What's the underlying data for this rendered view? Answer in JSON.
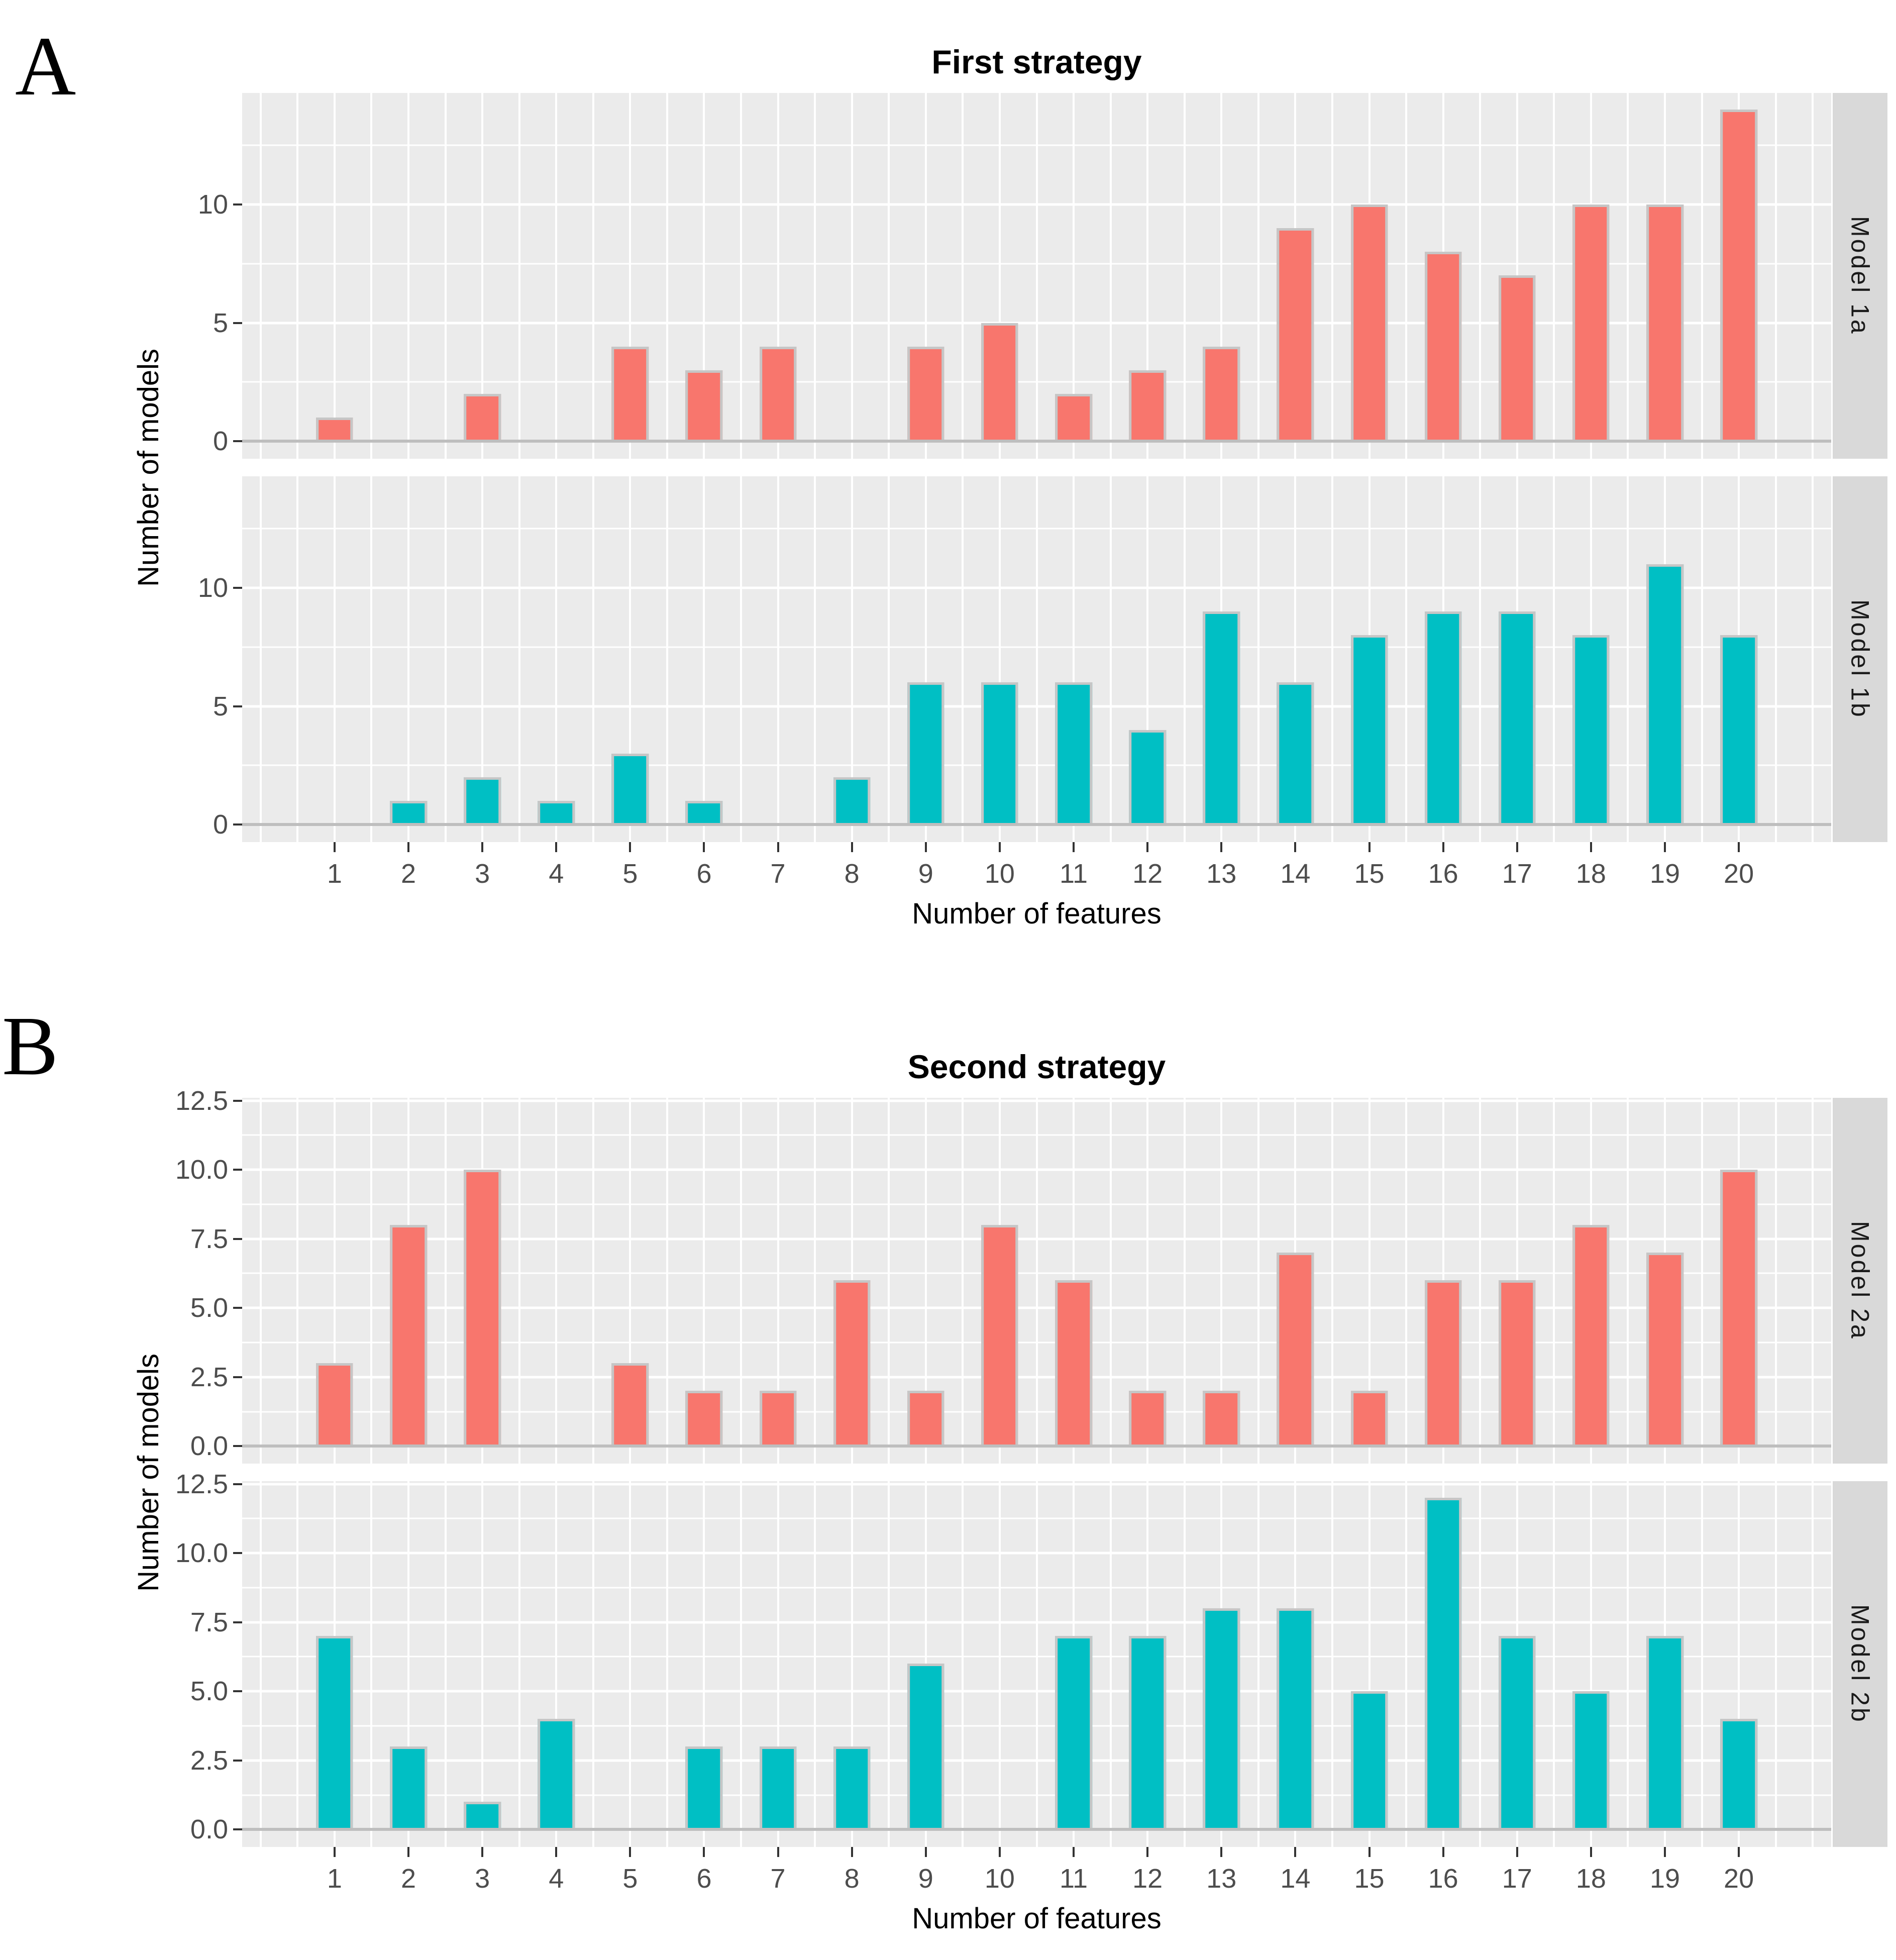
{
  "figure": {
    "sections": [
      {
        "corner_label": "A"
      },
      {
        "corner_label": "B"
      }
    ]
  },
  "chart_data": [
    {
      "type": "bar",
      "title": "First strategy",
      "xlabel": "Number of features",
      "ylabel": "Number of models",
      "categories": [
        "1",
        "2",
        "3",
        "4",
        "5",
        "6",
        "7",
        "8",
        "9",
        "10",
        "11",
        "12",
        "13",
        "14",
        "15",
        "16",
        "17",
        "18",
        "19",
        "20"
      ],
      "facets": [
        {
          "label": "Model 1a",
          "color": "#F8766D",
          "values": [
            1,
            0,
            2,
            0,
            4,
            3,
            4,
            0,
            4,
            5,
            2,
            3,
            4,
            9,
            10,
            8,
            7,
            10,
            10,
            14
          ]
        },
        {
          "label": "Model 1b",
          "color": "#00BFC4",
          "values": [
            0,
            1,
            2,
            1,
            3,
            1,
            0,
            2,
            6,
            6,
            6,
            4,
            9,
            6,
            8,
            9,
            9,
            8,
            11,
            8
          ]
        }
      ],
      "y_axis": {
        "major_ticks": [
          {
            "value": 0,
            "label": "0"
          },
          {
            "value": 5,
            "label": "5"
          },
          {
            "value": 10,
            "label": "10"
          }
        ],
        "minor_ticks": [
          2.5,
          7.5,
          12.5
        ],
        "ylim": [
          -0.735,
          14.7
        ]
      },
      "x_axis": {
        "xlim": [
          -0.25,
          21.25
        ],
        "gridline_step": 0.5,
        "bar_width_units": 0.5
      },
      "grid": true,
      "legend": "none"
    },
    {
      "type": "bar",
      "title": "Second strategy",
      "xlabel": "Number of features",
      "ylabel": "Number of models",
      "categories": [
        "1",
        "2",
        "3",
        "4",
        "5",
        "6",
        "7",
        "8",
        "9",
        "10",
        "11",
        "12",
        "13",
        "14",
        "15",
        "16",
        "17",
        "18",
        "19",
        "20"
      ],
      "facets": [
        {
          "label": "Model 2a",
          "color": "#F8766D",
          "values": [
            3,
            8,
            10,
            0,
            3,
            2,
            2,
            6,
            2,
            8,
            6,
            2,
            2,
            7,
            2,
            6,
            6,
            8,
            7,
            10
          ]
        },
        {
          "label": "Model 2b",
          "color": "#00BFC4",
          "values": [
            7,
            3,
            1,
            4,
            0,
            3,
            3,
            3,
            6,
            0,
            7,
            7,
            8,
            8,
            5,
            12,
            7,
            5,
            7,
            4
          ]
        }
      ],
      "y_axis": {
        "major_ticks": [
          {
            "value": 0,
            "label": "0.0"
          },
          {
            "value": 2.5,
            "label": "2.5"
          },
          {
            "value": 5,
            "label": "5.0"
          },
          {
            "value": 7.5,
            "label": "7.5"
          },
          {
            "value": 10,
            "label": "10.0"
          },
          {
            "value": 12.5,
            "label": "12.5"
          }
        ],
        "minor_ticks": [
          1.25,
          3.75,
          6.25,
          8.75,
          11.25
        ],
        "ylim": [
          -0.63,
          12.6
        ]
      },
      "x_axis": {
        "xlim": [
          -0.25,
          21.25
        ],
        "gridline_step": 0.5,
        "bar_width_units": 0.5
      },
      "grid": true,
      "legend": "none"
    }
  ],
  "style": {
    "panel_bg": "#EBEBEB",
    "strip_bg": "#D9D9D9",
    "grid_color": "#FFFFFF",
    "bar_border": "#C6C6C6",
    "baseline_color": "#BEBEBE",
    "tick_color": "#333333",
    "tick_label_color": "#4D4D4D",
    "salmon": "#F8766D",
    "teal": "#00BFC4"
  }
}
